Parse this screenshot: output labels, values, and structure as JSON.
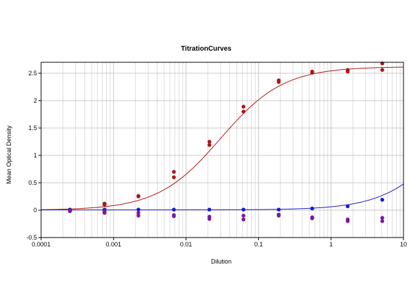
{
  "chart_data": {
    "type": "scatter",
    "title": "TitrationCurves",
    "xlabel": "Dilution",
    "ylabel": "Mean Optical Density",
    "x_scale": "log",
    "xlim": [
      0.0001,
      10
    ],
    "ylim": [
      -0.5,
      2.7
    ],
    "x_ticks": [
      {
        "value": 0.0001,
        "label": "0.0001"
      },
      {
        "value": 0.001,
        "label": "0.001"
      },
      {
        "value": 0.01,
        "label": "0.01"
      },
      {
        "value": 0.1,
        "label": "0.1"
      },
      {
        "value": 1,
        "label": "1"
      },
      {
        "value": 10,
        "label": "10"
      }
    ],
    "y_ticks": [
      {
        "value": -0.5,
        "label": "-0.5"
      },
      {
        "value": 0,
        "label": "0"
      },
      {
        "value": 0.5,
        "label": "0.5"
      },
      {
        "value": 1,
        "label": "1"
      },
      {
        "value": 1.5,
        "label": "1.5"
      },
      {
        "value": 2,
        "label": "2"
      },
      {
        "value": 2.5,
        "label": "2.5"
      }
    ],
    "grid": true,
    "series": [
      {
        "color": "#b01515",
        "points": [
          [
            0.00025,
            0.01
          ],
          [
            0.00025,
            0.0
          ],
          [
            0.00075,
            0.12
          ],
          [
            0.00075,
            0.1
          ],
          [
            0.0022,
            0.26
          ],
          [
            0.0022,
            0.25
          ],
          [
            0.0068,
            0.7
          ],
          [
            0.0068,
            0.6
          ],
          [
            0.021,
            1.25
          ],
          [
            0.021,
            1.19
          ],
          [
            0.062,
            1.89
          ],
          [
            0.062,
            1.8
          ],
          [
            0.19,
            2.37
          ],
          [
            0.19,
            2.34
          ],
          [
            0.55,
            2.53
          ],
          [
            0.55,
            2.51
          ],
          [
            1.7,
            2.56
          ],
          [
            1.7,
            2.53
          ],
          [
            5.1,
            2.68
          ],
          [
            5.1,
            2.56
          ]
        ],
        "curve": {
          "bottom": 0.0,
          "top": 2.62,
          "ec50": 0.03,
          "hill": 1.0
        }
      },
      {
        "color": "#1a1acc",
        "points": [
          [
            0.00025,
            0.01
          ],
          [
            0.00075,
            0.01
          ],
          [
            0.0022,
            0.01
          ],
          [
            0.0068,
            0.01
          ],
          [
            0.021,
            0.01
          ],
          [
            0.062,
            0.01
          ],
          [
            0.19,
            0.01
          ],
          [
            0.55,
            0.03
          ],
          [
            1.7,
            0.07
          ],
          [
            5.1,
            0.19
          ]
        ],
        "curve": {
          "bottom": 0.005,
          "top": 2.6,
          "ec50": 45,
          "hill": 1.0
        }
      },
      {
        "color": "#7a1a9a",
        "points": [
          [
            0.00025,
            -0.01
          ],
          [
            0.00025,
            -0.02
          ],
          [
            0.00075,
            -0.02
          ],
          [
            0.00075,
            -0.05
          ],
          [
            0.0022,
            -0.05
          ],
          [
            0.0022,
            -0.1
          ],
          [
            0.0068,
            -0.09
          ],
          [
            0.0068,
            -0.11
          ],
          [
            0.021,
            -0.12
          ],
          [
            0.021,
            -0.16
          ],
          [
            0.062,
            -0.1
          ],
          [
            0.062,
            -0.17
          ],
          [
            0.19,
            -0.08
          ],
          [
            0.19,
            -0.1
          ],
          [
            0.55,
            -0.13
          ],
          [
            0.55,
            -0.15
          ],
          [
            1.7,
            -0.17
          ],
          [
            1.7,
            -0.2
          ],
          [
            5.1,
            -0.14
          ],
          [
            5.1,
            -0.2
          ]
        ]
      }
    ]
  }
}
